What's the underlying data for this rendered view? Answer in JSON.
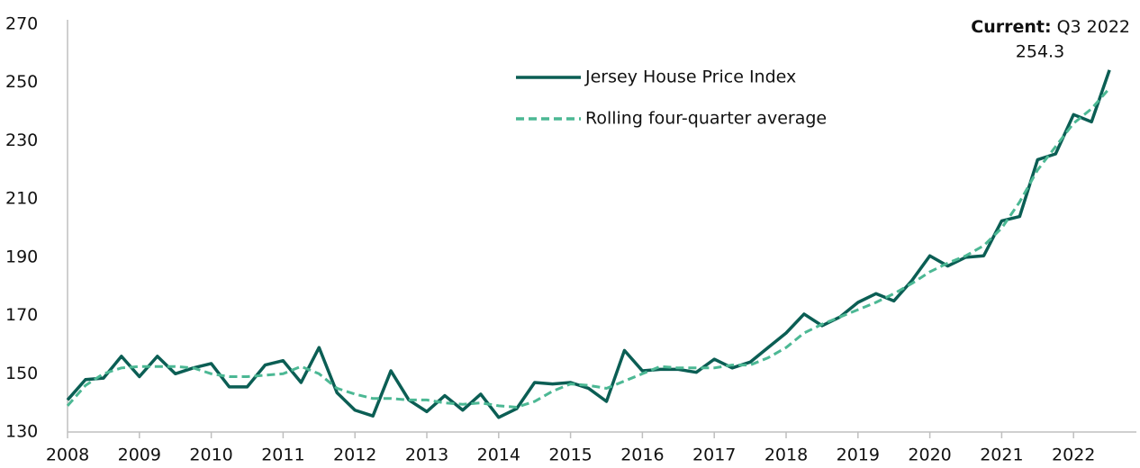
{
  "chart_data": {
    "type": "line",
    "categories": [
      "2008",
      null,
      null,
      null,
      "2009",
      null,
      null,
      null,
      "2010",
      null,
      null,
      null,
      "2011",
      null,
      null,
      null,
      "2012",
      null,
      null,
      null,
      "2013",
      null,
      null,
      null,
      "2014",
      null,
      null,
      null,
      "2015",
      null,
      null,
      null,
      "2016",
      null,
      null,
      null,
      "2017",
      null,
      null,
      null,
      "2018",
      null,
      null,
      null,
      "2019",
      null,
      null,
      null,
      "2020",
      null,
      null,
      null,
      "2021",
      null,
      null,
      null,
      "2022",
      null,
      null
    ],
    "series": [
      {
        "name": "Jersey House Price Index",
        "color": "#0b5e54",
        "dash": false,
        "values": [
          141,
          148,
          148.5,
          156,
          149,
          156,
          150,
          152,
          153.5,
          145.5,
          145.5,
          153,
          154.5,
          147,
          159,
          143.5,
          137.5,
          135.5,
          151,
          141,
          137,
          142.5,
          137.5,
          143,
          135,
          138,
          147,
          146.5,
          147,
          145,
          140.5,
          158,
          151,
          151.5,
          151.5,
          150.5,
          155,
          152,
          154,
          159,
          164,
          170.5,
          166.5,
          169.5,
          174.5,
          177.5,
          175,
          182,
          190.5,
          187,
          190,
          190.5,
          202.5,
          204,
          223.5,
          225.5,
          239,
          236.5,
          254.3
        ]
      },
      {
        "name": "Rolling four-quarter average",
        "color": "#4cb894",
        "dash": true,
        "values": [
          139,
          146,
          150,
          152,
          152.5,
          152.5,
          152.5,
          152,
          150,
          149,
          149,
          149.5,
          150,
          152.5,
          150,
          145,
          143,
          141.5,
          141.5,
          141,
          141,
          140,
          139.5,
          140,
          139,
          138.5,
          140.5,
          144,
          146.5,
          146,
          145,
          147.5,
          150,
          152.5,
          152,
          152,
          152,
          153,
          153,
          155.5,
          159,
          164,
          167,
          169.5,
          172,
          174.5,
          177.5,
          181,
          185,
          188,
          190.5,
          194,
          200,
          209,
          220,
          228,
          236,
          241,
          248
        ]
      }
    ],
    "ylim": [
      130,
      270
    ],
    "yticks": [
      130,
      150,
      170,
      190,
      210,
      230,
      250,
      270
    ],
    "annotation": {
      "label": "Current:",
      "text": "Q3 2022",
      "value": 254.3
    }
  }
}
